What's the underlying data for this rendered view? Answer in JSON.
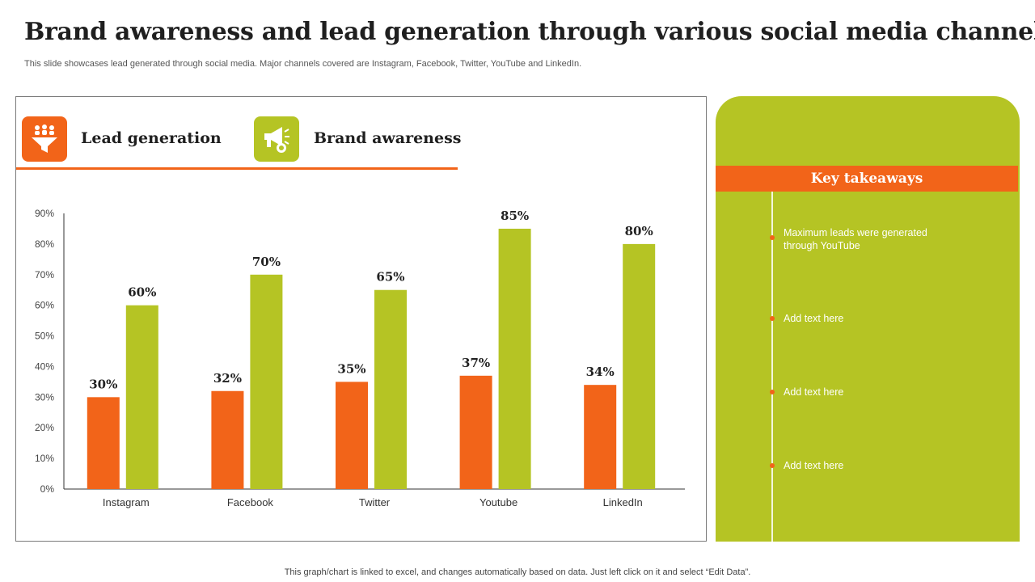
{
  "header": {
    "title": "Brand awareness and lead generation through various social media channels",
    "subtitle": "This slide showcases lead generated through social media. Major channels covered are Instagram, Facebook, Twitter, YouTube and LinkedIn."
  },
  "legend": {
    "lead_label": "Lead generation",
    "brand_label": "Brand awareness",
    "lead_icon": "funnel-people-icon",
    "brand_icon": "megaphone-icon"
  },
  "colors": {
    "orange": "#f26419",
    "green": "#b5c424"
  },
  "chart_data": {
    "type": "bar",
    "categories": [
      "Instagram",
      "Facebook",
      "Twitter",
      "Youtube",
      "LinkedIn"
    ],
    "series": [
      {
        "name": "Lead generation",
        "values": [
          30,
          32,
          35,
          37,
          34
        ],
        "color": "#f26419"
      },
      {
        "name": "Brand awareness",
        "values": [
          60,
          70,
          65,
          85,
          80
        ],
        "color": "#b5c424"
      }
    ],
    "ylim": [
      0,
      90
    ],
    "yticks": [
      0,
      10,
      20,
      30,
      40,
      50,
      60,
      70,
      80,
      90
    ],
    "ytick_labels": [
      "0%",
      "10%",
      "20%",
      "30%",
      "40%",
      "50%",
      "60%",
      "70%",
      "80%",
      "90%"
    ],
    "data_labels": [
      [
        "30%",
        "32%",
        "35%",
        "37%",
        "34%"
      ],
      [
        "60%",
        "70%",
        "65%",
        "85%",
        "80%"
      ]
    ],
    "value_suffix": "%",
    "legend_position": "top-left"
  },
  "takeaways": {
    "header": "Key takeaways",
    "items": [
      "Maximum leads were generated through YouTube",
      "Add text here",
      "Add text here",
      "Add text here"
    ]
  },
  "footer": {
    "note": "This graph/chart is linked to excel, and changes automatically based on data. Just left click on it and select “Edit Data”."
  }
}
